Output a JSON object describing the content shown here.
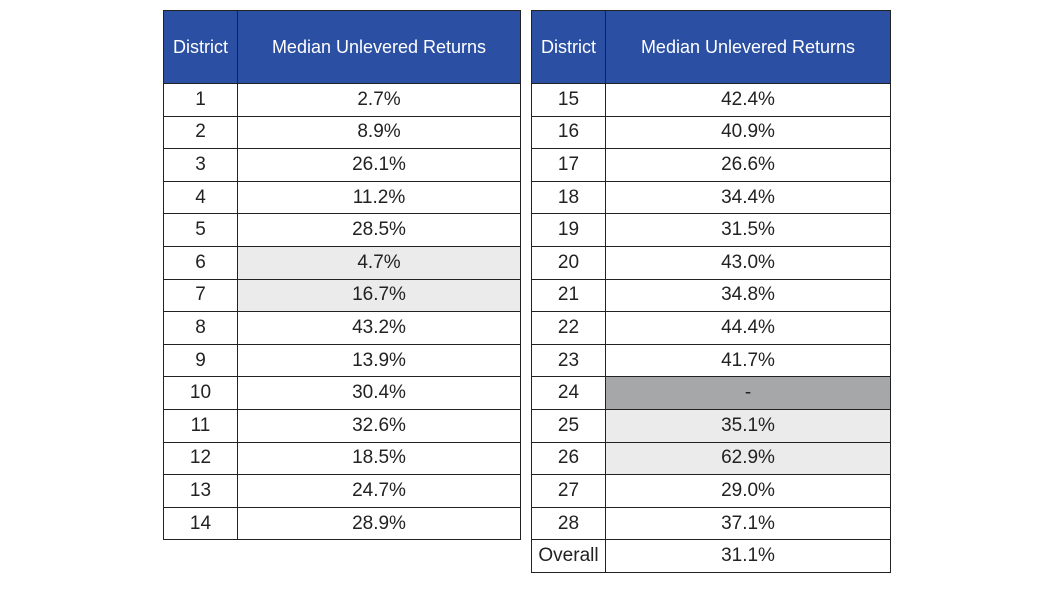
{
  "headers": {
    "district": "District",
    "returns": "Median Unlevered Returns"
  },
  "left_table": {
    "rows": [
      {
        "district": "1",
        "value": "2.7%"
      },
      {
        "district": "2",
        "value": "8.9%"
      },
      {
        "district": "3",
        "value": "26.1%"
      },
      {
        "district": "4",
        "value": "11.2%"
      },
      {
        "district": "5",
        "value": "28.5%"
      },
      {
        "district": "6",
        "value": "4.7%",
        "shade": "light"
      },
      {
        "district": "7",
        "value": "16.7%",
        "shade": "light"
      },
      {
        "district": "8",
        "value": "43.2%"
      },
      {
        "district": "9",
        "value": "13.9%"
      },
      {
        "district": "10",
        "value": "30.4%"
      },
      {
        "district": "11",
        "value": "32.6%"
      },
      {
        "district": "12",
        "value": "18.5%"
      },
      {
        "district": "13",
        "value": "24.7%"
      },
      {
        "district": "14",
        "value": "28.9%"
      }
    ]
  },
  "right_table": {
    "rows": [
      {
        "district": "15",
        "value": "42.4%"
      },
      {
        "district": "16",
        "value": "40.9%"
      },
      {
        "district": "17",
        "value": "26.6%"
      },
      {
        "district": "18",
        "value": "34.4%"
      },
      {
        "district": "19",
        "value": "31.5%"
      },
      {
        "district": "20",
        "value": "43.0%"
      },
      {
        "district": "21",
        "value": "34.8%"
      },
      {
        "district": "22",
        "value": "44.4%"
      },
      {
        "district": "23",
        "value": "41.7%"
      },
      {
        "district": "24",
        "value": "-",
        "shade": "dark"
      },
      {
        "district": "25",
        "value": "35.1%",
        "shade": "light"
      },
      {
        "district": "26",
        "value": "62.9%",
        "shade": "light"
      },
      {
        "district": "27",
        "value": "29.0%"
      },
      {
        "district": "28",
        "value": "37.1%"
      },
      {
        "district": "Overall",
        "value": "31.1%"
      }
    ]
  },
  "colors": {
    "header_bg": "#2a4fa3",
    "header_text": "#ffffff",
    "shade_light": "#ebebeb",
    "shade_dark": "#a6a7a9",
    "border": "#222222"
  }
}
